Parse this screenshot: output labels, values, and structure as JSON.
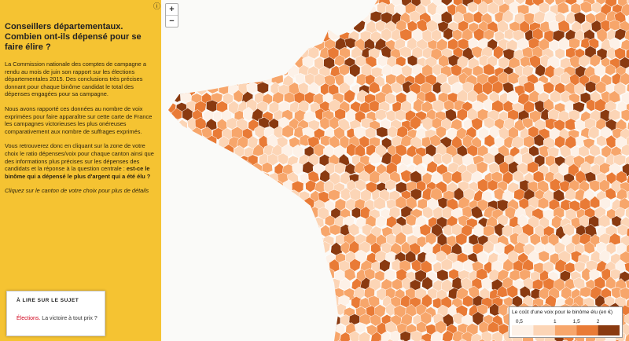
{
  "panel": {
    "info": "ⓘ",
    "title": "Conseillers départementaux. Combien ont-ils dépensé pour se faire élire ?",
    "paragraphs": [
      "La Commission nationale des comptes de campagne a rendu au mois de juin son rapport sur les élections départementales 2015. Des conclusions très précises donnant pour chaque binôme candidat le total des dépenses engagées pour sa campagne.",
      "Nous avons rapporté ces données au nombre de voix exprimées pour faire apparaître sur cette carte de France les campagnes victorieuses les plus onéreuses comparativement aux nombre de suffrages exprimés.",
      "Vous retrouverez donc en cliquant sur la zone de votre choix le ratio dépenses/voix pour chaque canton ainsi que des informations plus précises sur les dépenses des candidats et la réponse à la question centrale : "
    ],
    "bold": "est-ce le binôme qui a dépensé le plus d'argent qui a été élu ?",
    "hint": "Cliquez sur le canton de votre choix pour plus de détails",
    "related": {
      "heading": "À LIRE SUR LE SUJET",
      "tag": "Élections.",
      "link": " La victoire à tout prix ?"
    }
  },
  "zoom": {
    "in": "+",
    "out": "−"
  },
  "legend": {
    "title": "Le coût d'une voix pour le binôme élu (en €)",
    "ticks": [
      "0,5",
      "1",
      "1,5",
      "2"
    ],
    "colors": [
      "#fdf1e7",
      "#fcd5b6",
      "#f7a66b",
      "#e97b36",
      "#8a3a10"
    ]
  }
}
